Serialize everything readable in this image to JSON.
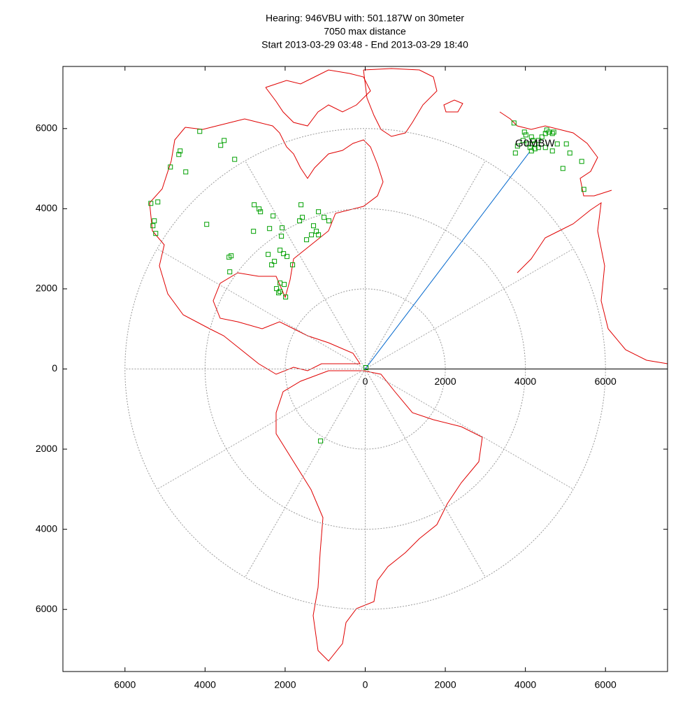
{
  "chart_data": {
    "type": "scatter",
    "title": [
      "Hearing: 946VBU with: 501.187W on 30meter",
      "7050 max distance",
      "Start 2013-03-29 03:48 - End 2013-03-29 18:40"
    ],
    "xlim": [
      -7550,
      7550
    ],
    "ylim": [
      -7550,
      7550
    ],
    "xticks": [
      {
        "value": -6000,
        "label": "6000"
      },
      {
        "value": -4000,
        "label": "4000"
      },
      {
        "value": -2000,
        "label": "2000"
      },
      0,
      2000,
      4000,
      6000
    ],
    "yticks": [
      {
        "value": -6000,
        "label": "6000"
      },
      {
        "value": -4000,
        "label": "4000"
      },
      {
        "value": -2000,
        "label": "2000"
      },
      0,
      2000,
      4000,
      6000
    ],
    "rticks": [
      0,
      2000,
      4000,
      6000
    ],
    "spoke_angle": 30,
    "point_color": "#00a000",
    "line_color": "#0066cc",
    "map_color": "#e00000",
    "series": [
      {
        "color": "#00a000",
        "x": [
          3715,
          3976,
          4011,
          4151,
          4186,
          4238,
          4116,
          4325,
          4412,
          4500,
          4587,
          4674,
          4709,
          4534,
          4151,
          4238,
          4325,
          4064,
          3941,
          4796,
          4674,
          5023,
          5110,
          4936,
          5406,
          5459,
          3750,
          4500,
          3802,
          -4133,
          -3523,
          -3610,
          -3261,
          -4482,
          -4866,
          -4656,
          -4622,
          -5354,
          -5180,
          -5267,
          -5302,
          -5232,
          -3959,
          -2790,
          -2616,
          -2302,
          -2389,
          -2075,
          -2093,
          -2773,
          -2651,
          -1604,
          -1570,
          -1639,
          -1168,
          -1029,
          -907,
          -1291,
          -1221,
          -1168,
          -1343,
          -1465,
          -2128,
          -2040,
          -1953,
          -2424,
          -2337,
          -2267,
          -3348,
          -3401,
          -3383,
          -1814,
          -2128,
          -2023,
          -2215,
          -2128,
          -2163,
          -1988,
          -1116,
          17
        ],
        "y": [
          6139,
          5912,
          5842,
          5790,
          5703,
          5616,
          5528,
          5703,
          5790,
          5877,
          5912,
          5877,
          5912,
          5964,
          5441,
          5494,
          5528,
          5616,
          5703,
          5616,
          5441,
          5616,
          5389,
          5005,
          5180,
          4482,
          5389,
          5528,
          5563,
          5930,
          5703,
          5581,
          5232,
          4918,
          5040,
          5354,
          5441,
          4133,
          4168,
          3697,
          3575,
          3383,
          3610,
          3436,
          3924,
          3819,
          3505,
          3523,
          3314,
          4098,
          3994,
          4098,
          3784,
          3697,
          3924,
          3784,
          3697,
          3575,
          3436,
          3348,
          3348,
          3226,
          2965,
          2878,
          2808,
          2860,
          2599,
          2686,
          2825,
          2790,
          2424,
          2599,
          2145,
          2110,
          2006,
          1936,
          1901,
          1796,
          -1796,
          35
        ]
      }
    ],
    "annotation": {
      "text": "G0MBW",
      "x": 4240,
      "y": 5617
    },
    "path_end": {
      "x": 4100,
      "y": 5410
    }
  }
}
